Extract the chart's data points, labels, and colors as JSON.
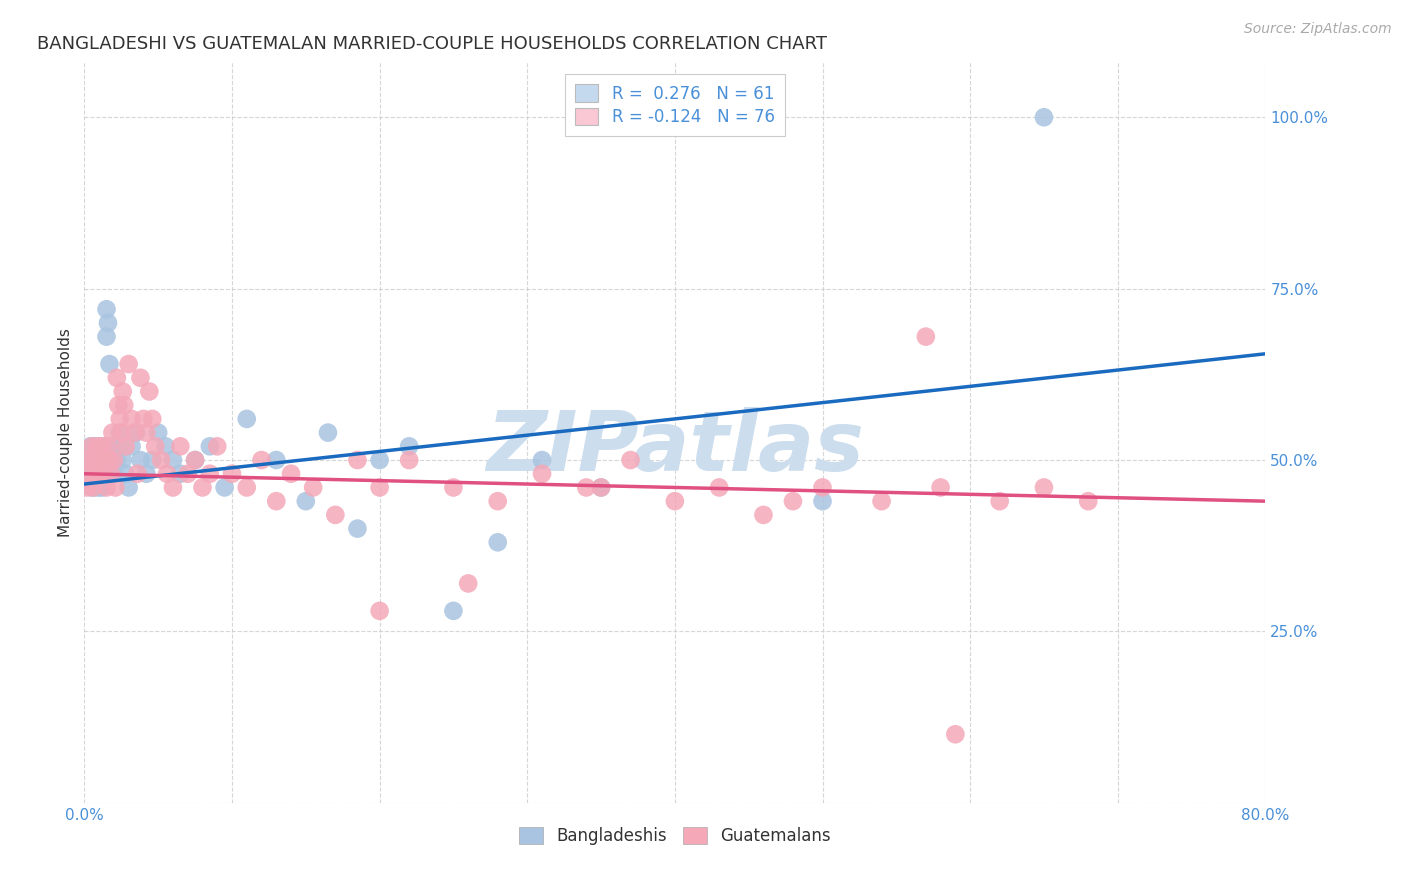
{
  "title": "BANGLADESHI VS GUATEMALAN MARRIED-COUPLE HOUSEHOLDS CORRELATION CHART",
  "source": "Source: ZipAtlas.com",
  "ylabel": "Married-couple Households",
  "xlim": [
    0.0,
    0.8
  ],
  "ylim": [
    0.0,
    1.08
  ],
  "ytick_vals": [
    0.0,
    0.25,
    0.5,
    0.75,
    1.0
  ],
  "ytick_labels_right": [
    "",
    "25.0%",
    "50.0%",
    "75.0%",
    "100.0%"
  ],
  "xtick_vals": [
    0.0,
    0.1,
    0.2,
    0.3,
    0.4,
    0.5,
    0.6,
    0.7,
    0.8
  ],
  "xtick_labels": [
    "0.0%",
    "",
    "",
    "",
    "",
    "",
    "",
    "",
    "80.0%"
  ],
  "bangladeshi_color": "#a8c4e0",
  "guatemalan_color": "#f4a8b8",
  "trendline_blue": "#1a6bbf",
  "trendline_pink": "#e05080",
  "legend_blue_face": "#c5d9ee",
  "legend_pink_face": "#f9c8d4",
  "watermark": "ZIPatlas",
  "watermark_color": "#ccdded",
  "r_blue": 0.276,
  "n_blue": 61,
  "r_pink": -0.124,
  "n_pink": 76,
  "blue_trend": [
    0.465,
    0.655
  ],
  "pink_trend": [
    0.48,
    0.44
  ],
  "bangladeshi_x": [
    0.002,
    0.003,
    0.004,
    0.005,
    0.005,
    0.006,
    0.006,
    0.007,
    0.007,
    0.008,
    0.008,
    0.009,
    0.009,
    0.01,
    0.01,
    0.011,
    0.011,
    0.012,
    0.012,
    0.013,
    0.013,
    0.014,
    0.014,
    0.015,
    0.015,
    0.016,
    0.017,
    0.018,
    0.019,
    0.02,
    0.021,
    0.022,
    0.024,
    0.026,
    0.028,
    0.03,
    0.032,
    0.035,
    0.038,
    0.042,
    0.046,
    0.05,
    0.055,
    0.06,
    0.065,
    0.075,
    0.085,
    0.095,
    0.11,
    0.13,
    0.15,
    0.165,
    0.185,
    0.2,
    0.22,
    0.25,
    0.28,
    0.31,
    0.35,
    0.5,
    0.65
  ],
  "bangladeshi_y": [
    0.5,
    0.48,
    0.52,
    0.46,
    0.5,
    0.48,
    0.52,
    0.5,
    0.46,
    0.5,
    0.52,
    0.48,
    0.5,
    0.46,
    0.5,
    0.52,
    0.48,
    0.5,
    0.46,
    0.52,
    0.5,
    0.48,
    0.52,
    0.68,
    0.72,
    0.7,
    0.64,
    0.52,
    0.5,
    0.48,
    0.52,
    0.5,
    0.54,
    0.5,
    0.48,
    0.46,
    0.52,
    0.54,
    0.5,
    0.48,
    0.5,
    0.54,
    0.52,
    0.5,
    0.48,
    0.5,
    0.52,
    0.46,
    0.56,
    0.5,
    0.44,
    0.54,
    0.4,
    0.5,
    0.52,
    0.28,
    0.38,
    0.5,
    0.46,
    0.44,
    1.0
  ],
  "guatemalan_x": [
    0.002,
    0.003,
    0.004,
    0.005,
    0.006,
    0.007,
    0.008,
    0.009,
    0.01,
    0.011,
    0.012,
    0.013,
    0.014,
    0.015,
    0.016,
    0.017,
    0.018,
    0.019,
    0.02,
    0.021,
    0.022,
    0.023,
    0.024,
    0.025,
    0.026,
    0.027,
    0.028,
    0.03,
    0.032,
    0.034,
    0.036,
    0.038,
    0.04,
    0.042,
    0.044,
    0.046,
    0.048,
    0.052,
    0.056,
    0.06,
    0.065,
    0.07,
    0.075,
    0.08,
    0.085,
    0.09,
    0.1,
    0.11,
    0.12,
    0.13,
    0.14,
    0.155,
    0.17,
    0.185,
    0.2,
    0.22,
    0.25,
    0.28,
    0.31,
    0.34,
    0.37,
    0.4,
    0.43,
    0.46,
    0.5,
    0.54,
    0.58,
    0.62,
    0.65,
    0.68,
    0.57,
    0.48,
    0.35,
    0.26,
    0.2,
    0.59
  ],
  "guatemalan_y": [
    0.46,
    0.5,
    0.48,
    0.52,
    0.46,
    0.5,
    0.48,
    0.52,
    0.48,
    0.5,
    0.52,
    0.48,
    0.5,
    0.46,
    0.52,
    0.5,
    0.48,
    0.54,
    0.5,
    0.46,
    0.62,
    0.58,
    0.56,
    0.54,
    0.6,
    0.58,
    0.52,
    0.64,
    0.56,
    0.54,
    0.48,
    0.62,
    0.56,
    0.54,
    0.6,
    0.56,
    0.52,
    0.5,
    0.48,
    0.46,
    0.52,
    0.48,
    0.5,
    0.46,
    0.48,
    0.52,
    0.48,
    0.46,
    0.5,
    0.44,
    0.48,
    0.46,
    0.42,
    0.5,
    0.46,
    0.5,
    0.46,
    0.44,
    0.48,
    0.46,
    0.5,
    0.44,
    0.46,
    0.42,
    0.46,
    0.44,
    0.46,
    0.44,
    0.46,
    0.44,
    0.68,
    0.44,
    0.46,
    0.32,
    0.28,
    0.1
  ],
  "background_color": "#ffffff",
  "grid_color": "#cccccc",
  "title_fontsize": 13,
  "axis_label_fontsize": 11,
  "tick_fontsize": 11,
  "legend_fontsize": 12,
  "source_fontsize": 10
}
